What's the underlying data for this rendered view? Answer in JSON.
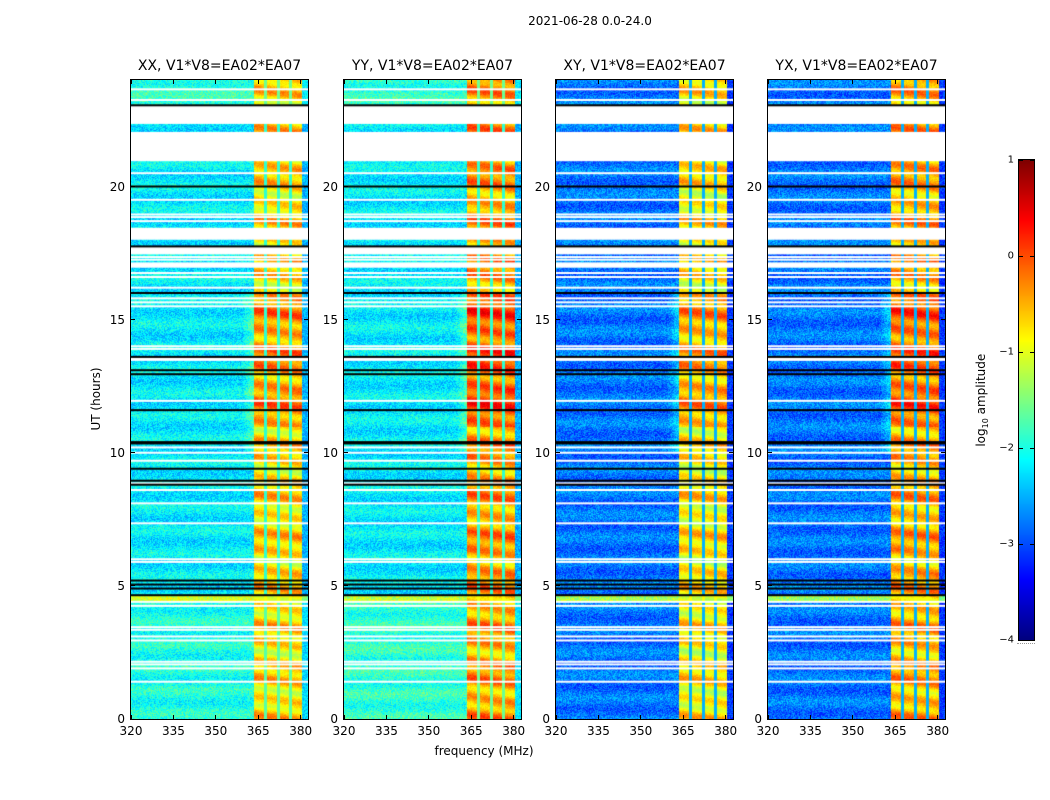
{
  "figure": {
    "suptitle": "2021-06-28 0.0-24.0",
    "xlabel": "frequency (MHz)",
    "ylabel": "UT (hours)",
    "colorbar": {
      "label_prefix": "log",
      "label_sub": "10",
      "label_suffix": " amplitude",
      "ticks": [
        "1",
        "0",
        "−1",
        "−2",
        "−3",
        "−4"
      ],
      "range": [
        -4,
        1
      ],
      "colormap": "jet"
    }
  },
  "chart_data": {
    "type": "heatmap",
    "title": "2021-06-28 0.0-24.0",
    "xlabel": "frequency (MHz)",
    "ylabel": "UT (hours)",
    "xlim": [
      320,
      382.6
    ],
    "ylim": [
      0,
      24
    ],
    "xticks": [
      320,
      335,
      350,
      365,
      380
    ],
    "xtick_labels": [
      "320",
      "335",
      "350",
      "365",
      "380"
    ],
    "yticks": [
      0,
      5,
      10,
      15,
      20
    ],
    "ytick_labels": [
      "0",
      "5",
      "10",
      "15",
      "20"
    ],
    "color_scale": {
      "label": "log10 amplitude",
      "min": -4,
      "max": 1,
      "ticks": [
        1,
        0,
        -1,
        -2,
        -3,
        -4
      ]
    },
    "panels": [
      {
        "title": "XX, V1*V8=EA02*EA07",
        "baseline_level": -2.2,
        "band_level": -0.7,
        "low_bg_level": -2.0
      },
      {
        "title": "YY, V1*V8=EA02*EA07",
        "baseline_level": -2.2,
        "band_level": -0.4,
        "low_bg_level": -1.9
      },
      {
        "title": "XY, V1*V8=EA02*EA07",
        "baseline_level": -2.8,
        "band_level": -0.8,
        "low_bg_level": -2.6
      },
      {
        "title": "YX, V1*V8=EA02*EA07",
        "baseline_level": -2.8,
        "band_level": -0.5,
        "low_bg_level": -2.6
      }
    ],
    "band": {
      "start_mhz": 363.4,
      "end_mhz": 380.3,
      "channel_edges_mhz": [
        367.3,
        372.0,
        376.2
      ]
    },
    "flagged_gaps_hours": [
      [
        22.35,
        23.05
      ],
      [
        20.95,
        22.05
      ],
      [
        18.0,
        18.45
      ],
      [
        17.45,
        17.75
      ],
      [
        16.95,
        17.15
      ],
      [
        13.45,
        13.6
      ]
    ],
    "flagged_lines_hours": [
      23.65,
      23.25,
      20.5,
      19.5,
      18.95,
      18.85,
      18.7,
      17.35,
      17.25,
      16.75,
      16.6,
      16.2,
      15.8,
      15.65,
      15.5,
      14.0,
      13.9,
      11.95,
      10.2,
      10.0,
      9.7,
      8.85,
      8.6,
      8.1,
      7.35,
      6.0,
      5.9,
      4.4,
      4.25,
      3.45,
      3.35,
      3.1,
      2.95,
      2.15,
      2.05,
      1.9,
      1.4
    ],
    "black_lines_hours": [
      23.05,
      20.0,
      17.75,
      16.0,
      13.6,
      13.1,
      12.95,
      11.6,
      10.4,
      10.35,
      9.4,
      8.95,
      8.8,
      5.2,
      5.05,
      4.9,
      4.65
    ]
  }
}
